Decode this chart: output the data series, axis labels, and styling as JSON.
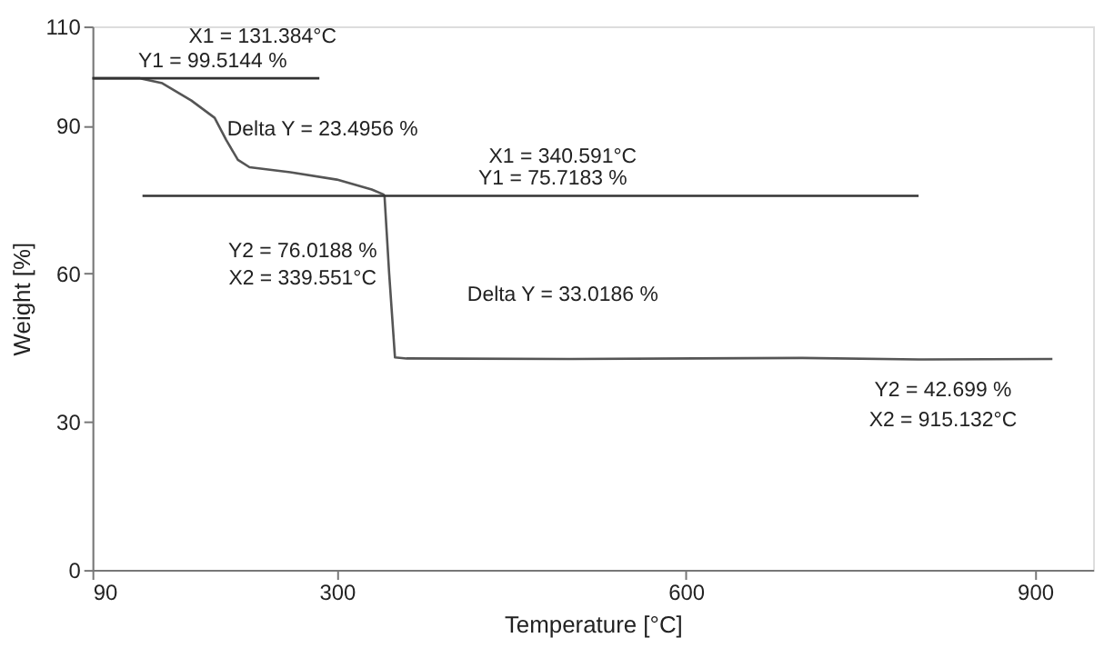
{
  "chart_data": {
    "type": "line",
    "xlabel": "Temperature [°C]",
    "ylabel": "Weight [%]",
    "xlim": [
      90,
      950
    ],
    "xticks": [
      90,
      300,
      600,
      900
    ],
    "ylim": [
      0,
      110
    ],
    "yticks": [
      0,
      30,
      60,
      90,
      110
    ],
    "grid": false,
    "marker": "none",
    "line_style": "solid",
    "series": [
      {
        "color": "#555555",
        "x": [
          90,
          131,
          150,
          175,
          195,
          205,
          215,
          225,
          260,
          300,
          330,
          340,
          341,
          345,
          350,
          360,
          500,
          700,
          800,
          915
        ],
        "values": [
          99.5,
          99.5,
          98.5,
          95,
          91.5,
          87,
          83,
          81.5,
          80.5,
          79,
          77,
          76,
          75.7,
          60,
          43,
          42.8,
          42.7,
          42.9,
          42.6,
          42.7
        ]
      },
      {
        "color": "#333333",
        "x": [
          90,
          285
        ],
        "values": [
          99.5,
          99.5
        ]
      },
      {
        "color": "#333333",
        "x": [
          133,
          800
        ],
        "values": [
          75.7,
          75.7
        ]
      }
    ],
    "annotations": [
      "X1 = 131.384°C",
      "Y1 = 99.5144 %",
      "Delta Y = 23.4956 %",
      "X1 = 340.591°C",
      "Y1 = 75.7183 %",
      "Y2 = 76.0188 %",
      "X2 = 339.551°C",
      "Delta Y = 33.0186 %",
      "Y2 = 42.699 %",
      "X2 = 915.132°C"
    ]
  }
}
